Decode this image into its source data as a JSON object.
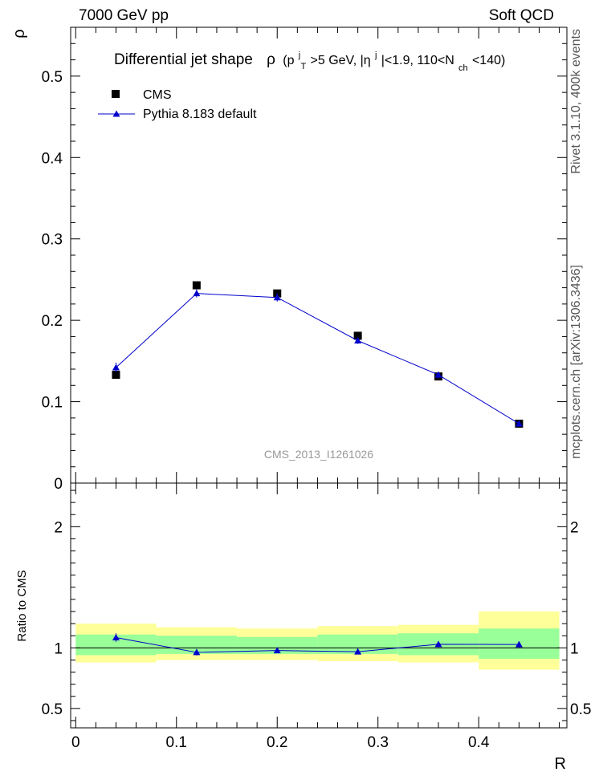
{
  "header": {
    "left": "7000 GeV pp",
    "right": "Soft QCD"
  },
  "side_labels": {
    "rivet": "Rivet 3.1.10,  400k events",
    "mcplots": "mcplots.cern.ch [arXiv:1306.3436]"
  },
  "watermark": "CMS_2013_I1261026",
  "chart_data": [
    {
      "type": "scatter",
      "panel": "main",
      "title": "Differential jet shape",
      "title_selection": {
        "rho": "ρ",
        "open": "(p",
        "pt_sup": "j",
        "pt_sub": "T",
        "pt_cut": ">5 GeV, |η",
        "eta_sup": "j",
        "eta_cut": "|<1.9, 110<N",
        "nch_sub": "ch",
        "nch_cut": "<140)"
      },
      "ylabel": "ρ",
      "xlabel": "R",
      "xlim": [
        -0.005,
        0.4875
      ],
      "ylim": [
        0,
        0.56
      ],
      "y_ticks": [
        0.1,
        0.2,
        0.3,
        0.4,
        0.5
      ],
      "y_tick_labels": [
        "0.1",
        "0.2",
        "0.3",
        "0.4",
        "0.5"
      ],
      "y_zero_label": "0",
      "legend_position": "top-left",
      "series": [
        {
          "name": "CMS",
          "marker": "square",
          "color": "#000000",
          "x": [
            0.04,
            0.12,
            0.2,
            0.28,
            0.36,
            0.44
          ],
          "y": [
            0.133,
            0.243,
            0.233,
            0.181,
            0.131,
            0.073
          ]
        },
        {
          "name": "Pythia 8.183 default",
          "marker": "triangle",
          "line": true,
          "color": "#0000cc",
          "x": [
            0.04,
            0.12,
            0.2,
            0.28,
            0.36,
            0.44
          ],
          "y": [
            0.142,
            0.233,
            0.228,
            0.175,
            0.133,
            0.073
          ],
          "yerr": [
            0.006,
            0.005,
            0.005,
            0.004,
            0.003,
            0.002
          ]
        }
      ]
    },
    {
      "type": "line",
      "panel": "ratio",
      "ylabel": "Ratio to CMS",
      "xlabel": "R",
      "xlim": [
        -0.005,
        0.4875
      ],
      "ylim": [
        0.34,
        2.36
      ],
      "y_ticks": [
        0.5,
        1,
        2
      ],
      "y_tick_labels": [
        "0.5",
        "1",
        "2"
      ],
      "x_ticks": [
        0,
        0.1,
        0.2,
        0.3,
        0.4
      ],
      "x_tick_labels": [
        "0",
        "0.1",
        "0.2",
        "0.3",
        "0.4"
      ],
      "bands": {
        "bin_edges": [
          0.0,
          0.08,
          0.16,
          0.24,
          0.32,
          0.4,
          0.48
        ],
        "yellow_lo": [
          0.88,
          0.9,
          0.9,
          0.89,
          0.88,
          0.82
        ],
        "yellow_hi": [
          1.2,
          1.17,
          1.16,
          1.18,
          1.19,
          1.3
        ],
        "green_lo": [
          0.94,
          0.95,
          0.95,
          0.95,
          0.94,
          0.91
        ],
        "green_hi": [
          1.11,
          1.1,
          1.09,
          1.11,
          1.12,
          1.16
        ],
        "yellow_color": "#ffff99",
        "green_color": "#99ff99"
      },
      "series": [
        {
          "name": "Pythia 8.183 default / CMS",
          "marker": "triangle",
          "color": "#0000cc",
          "x": [
            0.04,
            0.12,
            0.2,
            0.28,
            0.36,
            0.44
          ],
          "y": [
            1.085,
            0.963,
            0.978,
            0.968,
            1.03,
            1.028
          ],
          "yerr": [
            0.035,
            0.025,
            0.02,
            0.02,
            0.025,
            0.025
          ]
        }
      ]
    }
  ]
}
